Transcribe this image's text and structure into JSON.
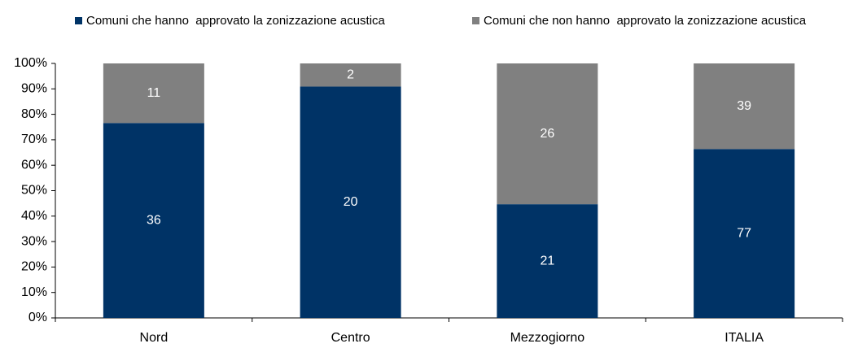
{
  "chart_data": {
    "type": "bar",
    "stacked": "percent",
    "categories": [
      "Nord",
      "Centro",
      "Mezzogiorno",
      "ITALIA"
    ],
    "series": [
      {
        "name": "Comuni che hanno  approvato la zonizzazione acustica",
        "color": "#003366",
        "values": [
          36,
          20,
          21,
          77
        ]
      },
      {
        "name": "Comuni che non hanno  approvato la zonizzazione acustica",
        "color": "#808080",
        "values": [
          11,
          2,
          26,
          39
        ]
      }
    ],
    "ylim": [
      0,
      100
    ],
    "yticks": [
      {
        "value": 0,
        "label": "0%"
      },
      {
        "value": 10,
        "label": "10%"
      },
      {
        "value": 20,
        "label": "20%"
      },
      {
        "value": 30,
        "label": "30%"
      },
      {
        "value": 40,
        "label": "40%"
      },
      {
        "value": 50,
        "label": "50%"
      },
      {
        "value": 60,
        "label": "60%"
      },
      {
        "value": 70,
        "label": "70%"
      },
      {
        "value": 80,
        "label": "80%"
      },
      {
        "value": 90,
        "label": "90%"
      },
      {
        "value": 100,
        "label": "100%"
      }
    ],
    "legend": "top"
  }
}
